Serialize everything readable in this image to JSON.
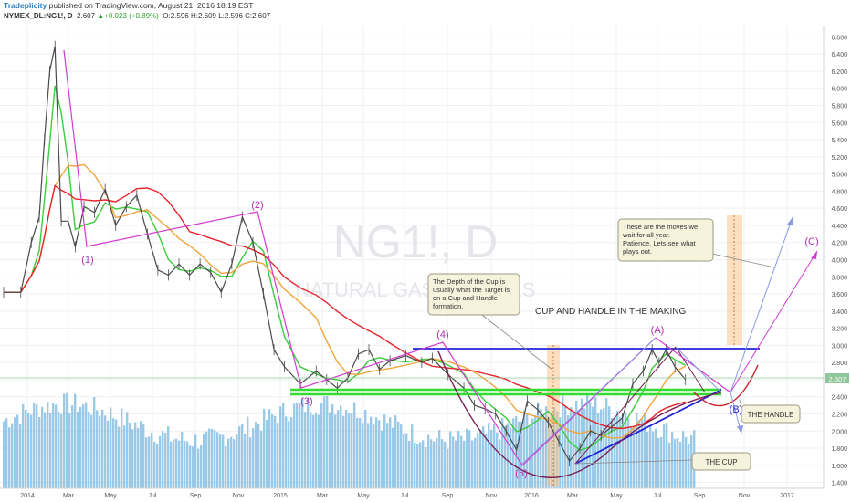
{
  "header": {
    "brand": "Tradeplicity",
    "published": " published on TradingView.com, August 21, 2016 18:19 EST",
    "symbol": "NYMEX_DL:NG1!, D",
    "last": "2.607",
    "arrow": "▲",
    "change": "+0.023 (+0.89%)",
    "ohlc": "O:2.596 H:2.609 L:2.596 C:2.607"
  },
  "watermark": {
    "symbol": "NG1!, D",
    "name": "NATURAL GAS FUTURES"
  },
  "colors": {
    "candle_up": "#4a4a4a",
    "ma_fast": "#3bcc3b",
    "ma_mid": "#f0a43a",
    "ma_slow": "#e8232b",
    "volume": "#7ab8e0",
    "wave": "#d23bd2",
    "trendline": "#2323d9",
    "support": "#2fdc2f",
    "cup": "#7a1f52",
    "projection": "#8a9ae0",
    "price_label": "#8fc79a",
    "note_bg": "#f5f3dc"
  },
  "annotations": {
    "wave1": "(1)",
    "wave2": "(2)",
    "wave3": "(3)",
    "wave4": "(4)",
    "wave5": "(5)",
    "waveA": "(A)",
    "waveB": "(B)",
    "waveC": "(C)",
    "title": "CUP AND HANDLE IN THE MAKING",
    "handle": "THE HANDLE",
    "cup": "THE CUP",
    "note_depth": [
      "The Depth of the Cup is",
      "usually what the Target is",
      "on a Cup and Handle",
      "formation."
    ],
    "note_moves": [
      "These are the moves we",
      "wait for all year.",
      "Patience.  Lets see what",
      "plays out."
    ]
  },
  "chart_data": {
    "type": "line",
    "title": "NYMEX_DL:NG1!, D",
    "ylabel": "",
    "ylim": [
      1.3,
      6.7
    ],
    "y_ticks": [
      "6.600",
      "6.400",
      "6.200",
      "6.000",
      "5.800",
      "5.600",
      "5.400",
      "5.200",
      "5.000",
      "4.800",
      "4.600",
      "4.400",
      "4.200",
      "4.000",
      "3.800",
      "3.600",
      "3.400",
      "3.200",
      "3.000",
      "2.800",
      "2.600",
      "2.400",
      "2.200",
      "2.000",
      "1.800",
      "1.600",
      "1.400"
    ],
    "x_ticks": [
      "2014",
      "Mar",
      "May",
      "Jul",
      "Sep",
      "Nov",
      "2015",
      "Mar",
      "May",
      "Jul",
      "Sep",
      "Nov",
      "2016",
      "Mar",
      "May",
      "Jul",
      "Sep",
      "Nov",
      "2017"
    ],
    "last_price_label": "2.607",
    "series": [
      {
        "name": "price",
        "points": [
          [
            "2014-01",
            3.62
          ],
          [
            "2014-01",
            4.2
          ],
          [
            "2014-02",
            4.5
          ],
          [
            "2014-02",
            5.4
          ],
          [
            "2014-02",
            6.2
          ],
          [
            "2014-02",
            6.49
          ],
          [
            "2014-03",
            4.45
          ],
          [
            "2014-03",
            4.45
          ],
          [
            "2014-03",
            4.15
          ],
          [
            "2014-04",
            4.62
          ],
          [
            "2014-04",
            4.55
          ],
          [
            "2014-05",
            4.82
          ],
          [
            "2014-05",
            4.4
          ],
          [
            "2014-06",
            4.62
          ],
          [
            "2014-06",
            4.75
          ],
          [
            "2014-07",
            4.3
          ],
          [
            "2014-07",
            3.88
          ],
          [
            "2014-08",
            3.82
          ],
          [
            "2014-08",
            3.95
          ],
          [
            "2014-09",
            3.82
          ],
          [
            "2014-09",
            3.95
          ],
          [
            "2014-10",
            3.85
          ],
          [
            "2014-10",
            3.62
          ],
          [
            "2014-11",
            3.95
          ],
          [
            "2014-11",
            4.5
          ],
          [
            "2014-12",
            4.2
          ],
          [
            "2014-12",
            3.6
          ],
          [
            "2015-01",
            2.95
          ],
          [
            "2015-01",
            2.75
          ],
          [
            "2015-02",
            2.55
          ],
          [
            "2015-03",
            2.7
          ],
          [
            "2015-03",
            2.6
          ],
          [
            "2015-04",
            2.5
          ],
          [
            "2015-04",
            2.62
          ],
          [
            "2015-05",
            2.9
          ],
          [
            "2015-05",
            2.95
          ],
          [
            "2015-06",
            2.72
          ],
          [
            "2015-06",
            2.82
          ],
          [
            "2015-07",
            2.88
          ],
          [
            "2015-08",
            2.8
          ],
          [
            "2015-08",
            2.85
          ],
          [
            "2015-09",
            2.66
          ],
          [
            "2015-10",
            2.5
          ],
          [
            "2015-10",
            2.3
          ],
          [
            "2015-11",
            2.26
          ],
          [
            "2015-11",
            2.2
          ],
          [
            "2015-12",
            2.0
          ],
          [
            "2015-12",
            1.78
          ],
          [
            "2016-01",
            2.35
          ],
          [
            "2016-01",
            2.25
          ],
          [
            "2016-02",
            2.1
          ],
          [
            "2016-02",
            1.88
          ],
          [
            "2016-03",
            1.65
          ],
          [
            "2016-03",
            1.8
          ],
          [
            "2016-04",
            2.0
          ],
          [
            "2016-04",
            1.95
          ],
          [
            "2016-05",
            2.05
          ],
          [
            "2016-05",
            2.15
          ],
          [
            "2016-06",
            2.55
          ],
          [
            "2016-06",
            2.7
          ],
          [
            "2016-07",
            2.95
          ],
          [
            "2016-07",
            2.8
          ],
          [
            "2016-07",
            2.95
          ],
          [
            "2016-08",
            2.75
          ],
          [
            "2016-08",
            2.6
          ]
        ]
      },
      {
        "name": "MA fast",
        "points": []
      },
      {
        "name": "MA mid",
        "points": []
      },
      {
        "name": "MA slow",
        "points": []
      }
    ],
    "volume": "histogram",
    "grid": true
  }
}
